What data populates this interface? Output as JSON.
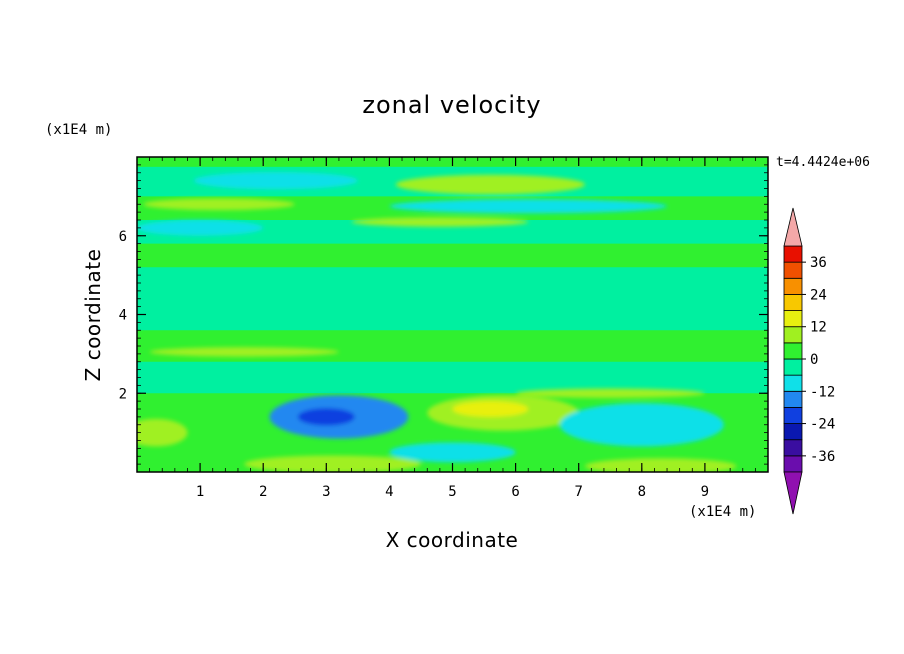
{
  "chart_data": {
    "type": "heatmap",
    "title": "zonal velocity",
    "xlabel": "X coordinate",
    "ylabel": "Z coordinate",
    "x_unit": "(x1E4 m)",
    "y_unit": "(x1E4 m)",
    "time_label": "t=4.4424e+06",
    "xlim": [
      0,
      10
    ],
    "ylim": [
      0,
      8
    ],
    "x_ticks": [
      1,
      2,
      3,
      4,
      5,
      6,
      7,
      8,
      9
    ],
    "y_ticks": [
      2,
      4,
      6
    ],
    "x_tick_labels": [
      "1",
      "2",
      "3",
      "4",
      "5",
      "6",
      "7",
      "8",
      "9"
    ],
    "y_tick_labels": [
      "2",
      "4",
      "6"
    ],
    "colorbar": {
      "levels": [
        -42,
        -36,
        -30,
        -24,
        -18,
        -12,
        -6,
        0,
        6,
        12,
        18,
        24,
        30,
        36,
        42
      ],
      "tick_values": [
        36,
        24,
        12,
        0,
        -12,
        -24,
        -36
      ],
      "tick_labels": [
        "36",
        "24",
        "12",
        "0",
        "-12",
        "-24",
        "-36"
      ],
      "colors": [
        "#6a0dad",
        "#3a0ea0",
        "#0a18b0",
        "#1040e0",
        "#2288f0",
        "#10e0e8",
        "#00f0a0",
        "#30f030",
        "#a0f020",
        "#e8f010",
        "#f8c800",
        "#f89000",
        "#f05000",
        "#e81000"
      ],
      "over_color": "#f4a8a8",
      "under_color": "#9010b0",
      "extend": "both"
    },
    "field_bands": [
      {
        "z": [
          7.75,
          8.0
        ],
        "value": 3,
        "note": ""
      },
      {
        "z": [
          7.0,
          7.75
        ],
        "value": -5
      },
      {
        "z": [
          6.4,
          7.0
        ],
        "value": 5
      },
      {
        "z": [
          5.8,
          6.4
        ],
        "value": -4
      },
      {
        "z": [
          5.2,
          5.8
        ],
        "value": 2
      },
      {
        "z": [
          4.4,
          5.2
        ],
        "value": -1
      },
      {
        "z": [
          3.6,
          4.4
        ],
        "value": -2
      },
      {
        "z": [
          2.8,
          3.6
        ],
        "value": 1
      },
      {
        "z": [
          2.0,
          2.8
        ],
        "value": -1
      },
      {
        "z": [
          0.35,
          2.0
        ],
        "value": 2
      },
      {
        "z": [
          0.0,
          0.35
        ],
        "value": 5
      }
    ],
    "anomalies": [
      {
        "x": 3.2,
        "z": 1.4,
        "rx": 1.1,
        "rz": 0.55,
        "value": -14
      },
      {
        "x": 3.0,
        "z": 1.4,
        "rx": 0.45,
        "rz": 0.22,
        "value": -20
      },
      {
        "x": 5.8,
        "z": 1.5,
        "rx": 1.2,
        "rz": 0.45,
        "value": 9
      },
      {
        "x": 5.6,
        "z": 1.6,
        "rx": 0.6,
        "rz": 0.2,
        "value": 13
      },
      {
        "x": 8.0,
        "z": 1.2,
        "rx": 1.3,
        "rz": 0.55,
        "value": -12
      },
      {
        "x": 0.3,
        "z": 1.0,
        "rx": 0.5,
        "rz": 0.35,
        "value": 8
      },
      {
        "x": 5.0,
        "z": 0.5,
        "rx": 1.0,
        "rz": 0.25,
        "value": -10
      },
      {
        "x": 3.1,
        "z": 0.2,
        "rx": 1.4,
        "rz": 0.22,
        "value": 10
      },
      {
        "x": 8.3,
        "z": 0.15,
        "rx": 1.2,
        "rz": 0.2,
        "value": 10
      },
      {
        "x": 2.2,
        "z": 7.4,
        "rx": 1.3,
        "rz": 0.22,
        "value": -10
      },
      {
        "x": 5.6,
        "z": 7.3,
        "rx": 1.5,
        "rz": 0.25,
        "value": 8
      },
      {
        "x": 6.2,
        "z": 6.75,
        "rx": 2.2,
        "rz": 0.18,
        "value": -9
      },
      {
        "x": 1.3,
        "z": 6.8,
        "rx": 1.2,
        "rz": 0.15,
        "value": 11
      },
      {
        "x": 1.0,
        "z": 6.2,
        "rx": 1.0,
        "rz": 0.2,
        "value": -9
      },
      {
        "x": 4.8,
        "z": 6.35,
        "rx": 1.4,
        "rz": 0.12,
        "value": 7
      },
      {
        "x": 7.5,
        "z": 2.0,
        "rx": 1.5,
        "rz": 0.12,
        "value": 7
      },
      {
        "x": 1.7,
        "z": 3.05,
        "rx": 1.5,
        "rz": 0.12,
        "value": 6
      }
    ]
  }
}
